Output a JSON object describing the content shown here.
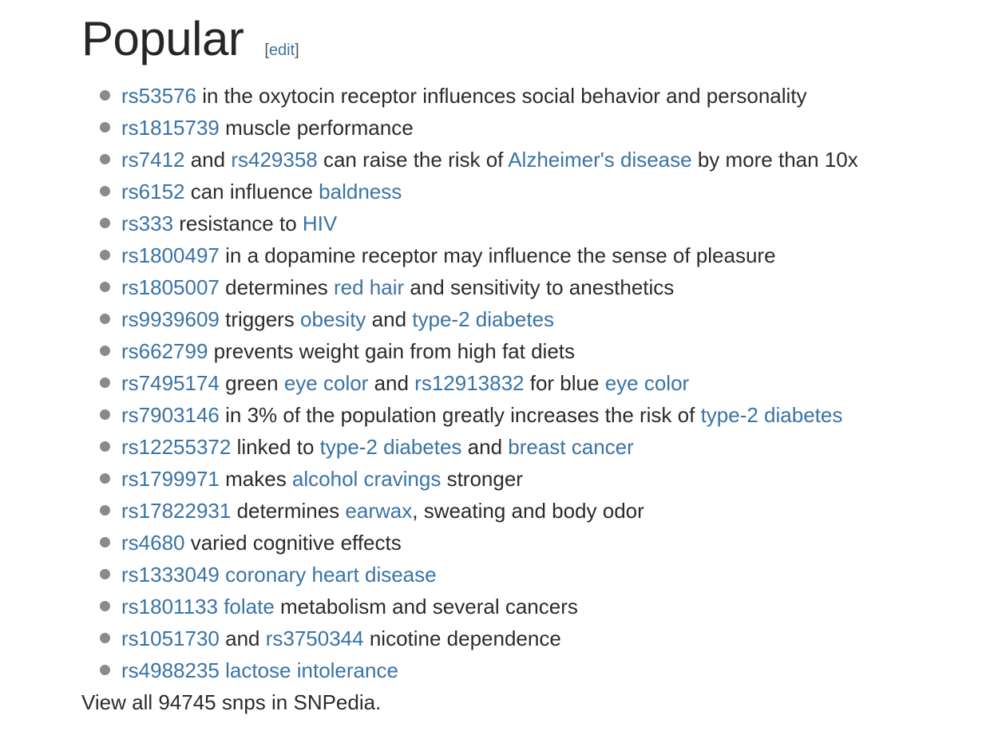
{
  "heading": {
    "title": "Popular",
    "edit_open": "[",
    "edit_label": "edit",
    "edit_close": "]"
  },
  "items": [
    [
      {
        "t": "rs53576",
        "link": true
      },
      {
        "t": " in the oxytocin receptor influences social behavior and personality"
      }
    ],
    [
      {
        "t": "rs1815739",
        "link": true
      },
      {
        "t": " muscle performance"
      }
    ],
    [
      {
        "t": "rs7412",
        "link": true
      },
      {
        "t": " and "
      },
      {
        "t": "rs429358",
        "link": true
      },
      {
        "t": " can raise the risk of "
      },
      {
        "t": "Alzheimer's disease",
        "link": true
      },
      {
        "t": " by more than 10x"
      }
    ],
    [
      {
        "t": "rs6152",
        "link": true
      },
      {
        "t": " can influence "
      },
      {
        "t": "baldness",
        "link": true
      }
    ],
    [
      {
        "t": "rs333",
        "link": true
      },
      {
        "t": " resistance to "
      },
      {
        "t": "HIV",
        "link": true
      }
    ],
    [
      {
        "t": "rs1800497",
        "link": true
      },
      {
        "t": " in a dopamine receptor may influence the sense of pleasure"
      }
    ],
    [
      {
        "t": "rs1805007",
        "link": true
      },
      {
        "t": " determines "
      },
      {
        "t": "red hair",
        "link": true
      },
      {
        "t": " and sensitivity to anesthetics"
      }
    ],
    [
      {
        "t": "rs9939609",
        "link": true
      },
      {
        "t": " triggers "
      },
      {
        "t": "obesity",
        "link": true
      },
      {
        "t": " and "
      },
      {
        "t": "type-2 diabetes",
        "link": true
      }
    ],
    [
      {
        "t": "rs662799",
        "link": true
      },
      {
        "t": " prevents weight gain from high fat diets"
      }
    ],
    [
      {
        "t": "rs7495174",
        "link": true
      },
      {
        "t": " green "
      },
      {
        "t": "eye color",
        "link": true
      },
      {
        "t": " and "
      },
      {
        "t": "rs12913832",
        "link": true
      },
      {
        "t": " for blue "
      },
      {
        "t": "eye color",
        "link": true
      }
    ],
    [
      {
        "t": "rs7903146",
        "link": true
      },
      {
        "t": " in 3% of the population greatly increases the risk of "
      },
      {
        "t": "type-2 diabetes",
        "link": true
      }
    ],
    [
      {
        "t": "rs12255372",
        "link": true
      },
      {
        "t": " linked to "
      },
      {
        "t": "type-2 diabetes",
        "link": true
      },
      {
        "t": " and "
      },
      {
        "t": "breast cancer",
        "link": true
      }
    ],
    [
      {
        "t": "rs1799971",
        "link": true
      },
      {
        "t": " makes "
      },
      {
        "t": "alcohol cravings",
        "link": true
      },
      {
        "t": " stronger"
      }
    ],
    [
      {
        "t": "rs17822931",
        "link": true
      },
      {
        "t": " determines "
      },
      {
        "t": "earwax",
        "link": true
      },
      {
        "t": ", sweating and body odor"
      }
    ],
    [
      {
        "t": "rs4680",
        "link": true
      },
      {
        "t": " varied cognitive effects"
      }
    ],
    [
      {
        "t": "rs1333049",
        "link": true
      },
      {
        "t": " "
      },
      {
        "t": "coronary heart disease",
        "link": true
      }
    ],
    [
      {
        "t": "rs1801133",
        "link": true
      },
      {
        "t": " "
      },
      {
        "t": "folate",
        "link": true
      },
      {
        "t": " metabolism and several cancers"
      }
    ],
    [
      {
        "t": "rs1051730",
        "link": true
      },
      {
        "t": " and "
      },
      {
        "t": "rs3750344",
        "link": true
      },
      {
        "t": " nicotine dependence"
      }
    ],
    [
      {
        "t": "rs4988235",
        "link": true
      },
      {
        "t": " "
      },
      {
        "t": "lactose intolerance",
        "link": true
      }
    ]
  ],
  "footer": {
    "text": "View all 94745 snps in SNPedia."
  },
  "colors": {
    "link": "#3a73a6",
    "text": "#2b2b2b",
    "bullet": "#8a8a8a"
  }
}
